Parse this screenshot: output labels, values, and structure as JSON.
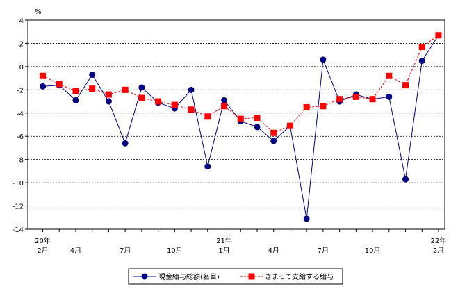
{
  "chart_data": {
    "type": "line",
    "ylabel": "%",
    "ylim": [
      -14,
      4
    ],
    "yticks": [
      4,
      2,
      0,
      -2,
      -4,
      -6,
      -8,
      -10,
      -12,
      -14
    ],
    "grid": true,
    "legend_position": "bottom-center",
    "x_tick_labels": [
      {
        "index": 0,
        "lines": [
          "20年",
          "2月"
        ]
      },
      {
        "index": 2,
        "lines": [
          "4月"
        ]
      },
      {
        "index": 5,
        "lines": [
          "7月"
        ]
      },
      {
        "index": 8,
        "lines": [
          "10月"
        ]
      },
      {
        "index": 11,
        "lines": [
          "21年",
          "1月"
        ]
      },
      {
        "index": 14,
        "lines": [
          "4月"
        ]
      },
      {
        "index": 17,
        "lines": [
          "7月"
        ]
      },
      {
        "index": 20,
        "lines": [
          "10月"
        ]
      },
      {
        "index": 24,
        "lines": [
          "22年",
          "2月"
        ]
      }
    ],
    "series": [
      {
        "name": "現金給与総額(名目)",
        "color": "#000080",
        "line_style": "solid",
        "marker": "circle",
        "values": [
          -1.7,
          -1.6,
          -2.9,
          -0.7,
          -3.0,
          -6.6,
          -1.8,
          -3.1,
          -3.6,
          -2.0,
          -8.6,
          -2.9,
          -4.7,
          -5.2,
          -6.4,
          -5.1,
          -13.1,
          0.6,
          -3.0,
          -2.4,
          -2.8,
          -2.6,
          -9.7,
          0.5,
          2.7
        ]
      },
      {
        "name": "きまって支給する給与",
        "color": "#ff0000",
        "line_style": "dashed",
        "marker": "square",
        "values": [
          -0.8,
          -1.5,
          -2.1,
          -1.9,
          -2.4,
          -2.0,
          -2.7,
          -3.0,
          -3.3,
          -3.7,
          -4.3,
          -3.4,
          -4.5,
          -4.4,
          -5.7,
          -5.1,
          -3.5,
          -3.4,
          -2.8,
          -2.6,
          -2.8,
          -0.8,
          -1.6,
          1.7,
          2.7
        ]
      }
    ]
  }
}
